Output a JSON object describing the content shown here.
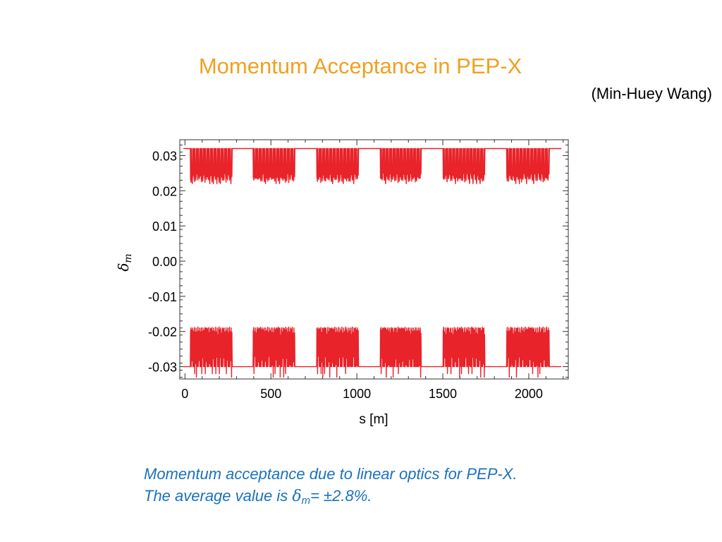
{
  "slide": {
    "title": "Momentum Acceptance in PEP-X",
    "author": "(Min-Huey Wang)"
  },
  "caption": {
    "line1": "Momentum acceptance due to linear optics for PEP-X.",
    "line2_prefix": "The average value is ",
    "delta_symbol": "δ",
    "delta_subscript": "m",
    "line2_suffix": "= ±2.8%."
  },
  "chart_data": {
    "type": "line",
    "title": "",
    "xlabel": "s [m]",
    "ylabel_symbol": "δ",
    "ylabel_subscript": "m",
    "xlim": [
      -30,
      2230
    ],
    "ylim": [
      -0.0335,
      0.0345
    ],
    "xticks": [
      0,
      500,
      1000,
      1500,
      2000
    ],
    "xtick_labels": [
      "0",
      "500",
      "1000",
      "1500",
      "2000"
    ],
    "yticks": [
      -0.03,
      -0.02,
      -0.01,
      0.0,
      0.01,
      0.02,
      0.03
    ],
    "ytick_labels": [
      "-0.03",
      "-0.02",
      "-0.01",
      "0.00",
      "0.01",
      "0.02",
      "0.03"
    ],
    "grid": false,
    "line_color": "#e8232a",
    "flat_level_upper": 0.032,
    "flat_level_lower": -0.03,
    "arc_segments": [
      [
        30,
        275
      ],
      [
        395,
        640
      ],
      [
        765,
        1010
      ],
      [
        1135,
        1375
      ],
      [
        1500,
        1745
      ],
      [
        1870,
        2120
      ]
    ],
    "upper_oscillation": {
      "high": 0.032,
      "low": 0.0235,
      "min": 0.022
    },
    "lower_oscillation": {
      "high": -0.019,
      "low": -0.03,
      "min": -0.033
    },
    "series": [
      {
        "name": "",
        "description_values": "upper boundary oscillates between 0.0235 and 0.032 inside arcs, flat 0.032 in straights"
      },
      {
        "name": "",
        "description_values": "lower boundary oscillates between -0.030 and -0.019 inside arcs, flat -0.030 in straights"
      }
    ]
  }
}
